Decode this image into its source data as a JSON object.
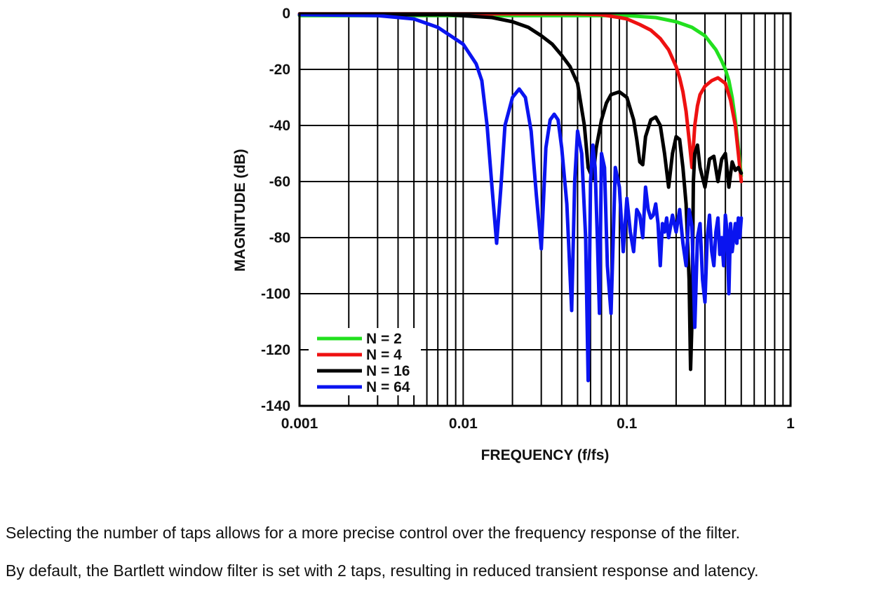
{
  "chart_data": {
    "type": "line",
    "title": "",
    "xlabel": "FREQUENCY (f/fs)",
    "ylabel": "MAGNITUDE (dB)",
    "x_scale": "log",
    "xlim": [
      0.001,
      1
    ],
    "ylim": [
      -140,
      0
    ],
    "x_ticks": [
      {
        "value": 0.001,
        "label": "0.001"
      },
      {
        "value": 0.01,
        "label": "0.01"
      },
      {
        "value": 0.1,
        "label": "0.1"
      },
      {
        "value": 1,
        "label": "1"
      }
    ],
    "y_ticks": [
      {
        "value": 0,
        "label": "0"
      },
      {
        "value": -20,
        "label": "-20"
      },
      {
        "value": -40,
        "label": "-40"
      },
      {
        "value": -60,
        "label": "-60"
      },
      {
        "value": -80,
        "label": "-80"
      },
      {
        "value": -100,
        "label": "-100"
      },
      {
        "value": -120,
        "label": "-120"
      },
      {
        "value": -140,
        "label": "-140"
      }
    ],
    "grid": true,
    "legend_position": "bottom-left",
    "series": [
      {
        "name": "N = 2",
        "color": "#22e01f",
        "x": [
          0.001,
          0.01,
          0.05,
          0.1,
          0.15,
          0.2,
          0.25,
          0.3,
          0.35,
          0.38,
          0.4,
          0.42,
          0.44,
          0.46,
          0.48,
          0.5
        ],
        "y": [
          -0.8,
          -0.8,
          -0.8,
          -0.8,
          -1.5,
          -3,
          -5,
          -8,
          -13,
          -17,
          -20,
          -24,
          -30,
          -38,
          -48,
          -58
        ]
      },
      {
        "name": "N = 4",
        "color": "#ee1111",
        "x": [
          0.001,
          0.01,
          0.03,
          0.05,
          0.07,
          0.09,
          0.1,
          0.12,
          0.14,
          0.16,
          0.18,
          0.2,
          0.21,
          0.22,
          0.23,
          0.24,
          0.25,
          0.26,
          0.27,
          0.28,
          0.3,
          0.33,
          0.36,
          0.4,
          0.43,
          0.46,
          0.48,
          0.5
        ],
        "y": [
          -0.2,
          -0.2,
          -0.2,
          -0.2,
          -0.5,
          -1.5,
          -2,
          -4,
          -6,
          -9,
          -13,
          -19,
          -23,
          -28,
          -35,
          -45,
          -55,
          -40,
          -33,
          -29,
          -26,
          -24,
          -23,
          -25,
          -31,
          -40,
          -50,
          -60
        ]
      },
      {
        "name": "N = 16",
        "color": "#000000",
        "x": [
          0.001,
          0.008,
          0.015,
          0.02,
          0.025,
          0.03,
          0.035,
          0.04,
          0.045,
          0.05,
          0.055,
          0.058,
          0.062,
          0.065,
          0.07,
          0.075,
          0.08,
          0.09,
          0.1,
          0.11,
          0.115,
          0.12,
          0.125,
          0.13,
          0.14,
          0.15,
          0.16,
          0.17,
          0.18,
          0.19,
          0.2,
          0.21,
          0.22,
          0.23,
          0.24,
          0.245,
          0.25,
          0.255,
          0.26,
          0.27,
          0.28,
          0.3,
          0.32,
          0.34,
          0.36,
          0.38,
          0.4,
          0.42,
          0.44,
          0.46,
          0.48,
          0.5
        ],
        "y": [
          -0.5,
          -0.5,
          -1.5,
          -3,
          -5,
          -8,
          -11,
          -15,
          -19,
          -25,
          -40,
          -55,
          -59,
          -48,
          -38,
          -32,
          -29,
          -28,
          -30,
          -38,
          -45,
          -53,
          -54,
          -44,
          -38,
          -37,
          -40,
          -50,
          -62,
          -50,
          -44,
          -45,
          -55,
          -68,
          -95,
          -127,
          -110,
          -60,
          -50,
          -47,
          -55,
          -62,
          -52,
          -51,
          -60,
          -52,
          -50,
          -62,
          -53,
          -56,
          -55,
          -57
        ]
      },
      {
        "name": "N = 64",
        "color": "#0a14f0",
        "x": [
          0.001,
          0.003,
          0.005,
          0.007,
          0.01,
          0.012,
          0.013,
          0.014,
          0.015,
          0.016,
          0.017,
          0.018,
          0.02,
          0.022,
          0.024,
          0.026,
          0.028,
          0.03,
          0.032,
          0.034,
          0.036,
          0.038,
          0.04,
          0.043,
          0.046,
          0.048,
          0.05,
          0.053,
          0.056,
          0.058,
          0.06,
          0.062,
          0.064,
          0.066,
          0.068,
          0.07,
          0.073,
          0.076,
          0.08,
          0.085,
          0.09,
          0.095,
          0.1,
          0.105,
          0.11,
          0.115,
          0.12,
          0.125,
          0.13,
          0.135,
          0.14,
          0.145,
          0.15,
          0.155,
          0.16,
          0.165,
          0.17,
          0.175,
          0.18,
          0.19,
          0.2,
          0.21,
          0.22,
          0.23,
          0.24,
          0.25,
          0.26,
          0.27,
          0.28,
          0.29,
          0.3,
          0.31,
          0.32,
          0.33,
          0.34,
          0.35,
          0.36,
          0.37,
          0.38,
          0.39,
          0.4,
          0.41,
          0.42,
          0.43,
          0.44,
          0.45,
          0.46,
          0.47,
          0.48,
          0.49,
          0.5
        ],
        "y": [
          -0.5,
          -0.8,
          -2,
          -5,
          -11,
          -18,
          -24,
          -40,
          -62,
          -82,
          -62,
          -40,
          -30,
          -27,
          -30,
          -42,
          -65,
          -84,
          -48,
          -38,
          -36,
          -38,
          -48,
          -68,
          -106,
          -60,
          -42,
          -50,
          -80,
          -131,
          -60,
          -47,
          -55,
          -80,
          -107,
          -50,
          -55,
          -90,
          -107,
          -55,
          -62,
          -85,
          -66,
          -78,
          -85,
          -70,
          -72,
          -80,
          -62,
          -70,
          -73,
          -72,
          -68,
          -75,
          -90,
          -75,
          -78,
          -73,
          -80,
          -72,
          -78,
          -70,
          -82,
          -90,
          -70,
          -76,
          -112,
          -80,
          -75,
          -95,
          -103,
          -80,
          -72,
          -85,
          -90,
          -78,
          -73,
          -86,
          -80,
          -90,
          -72,
          -78,
          -100,
          -75,
          -85,
          -80,
          -75,
          -82,
          -73,
          -80,
          -73
        ]
      }
    ]
  },
  "caption": {
    "line1": "Selecting the number of taps allows for a more precise control over the frequency response of the filter.",
    "line2": "By default, the Bartlett window filter is set with 2 taps, resulting in reduced transient response and latency."
  }
}
